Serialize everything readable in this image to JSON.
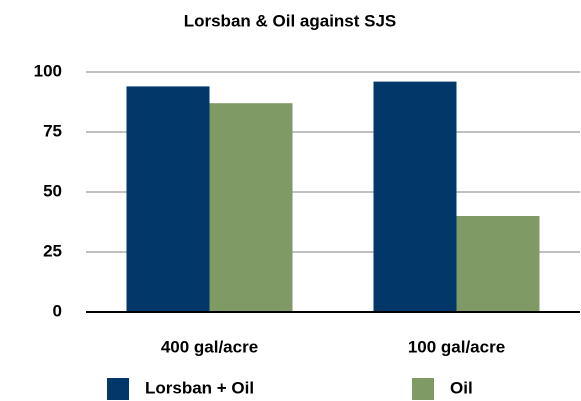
{
  "chart_data": {
    "type": "bar",
    "title": "Lorsban & Oil against SJS",
    "categories": [
      "400 gal/acre",
      "100 gal/acre"
    ],
    "series": [
      {
        "name": "Lorsban + Oil",
        "color": "#02376a",
        "values": [
          94,
          96
        ]
      },
      {
        "name": "Oil",
        "color": "#7f9a65",
        "values": [
          87,
          40
        ]
      }
    ],
    "ylim": [
      0,
      100
    ],
    "yticks": [
      0,
      25,
      50,
      75,
      100
    ],
    "grid": true,
    "legend": "bottom"
  }
}
